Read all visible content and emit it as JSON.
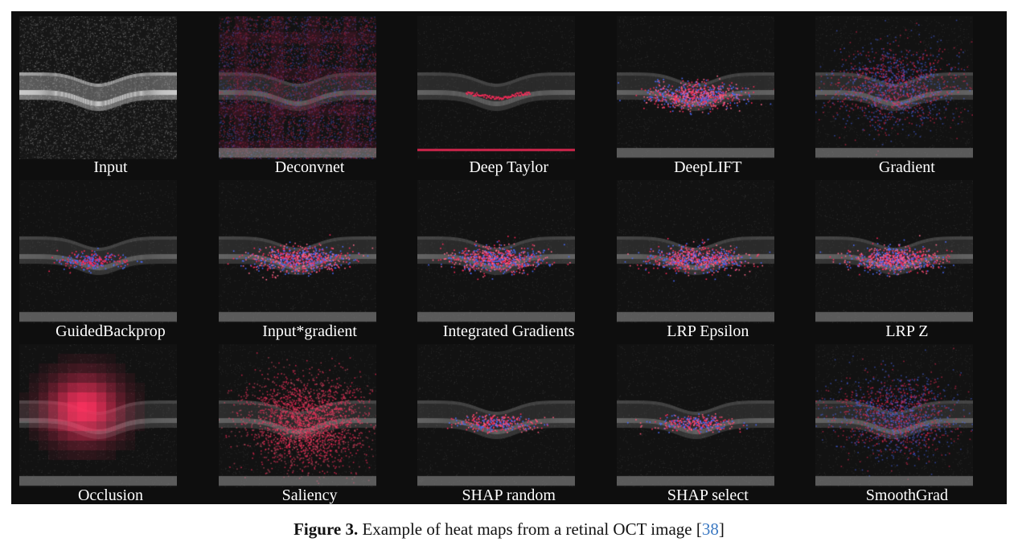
{
  "panels": [
    {
      "label": "Input",
      "kind": "input"
    },
    {
      "label": "Deconvnet",
      "kind": "deconv"
    },
    {
      "label": "Deep Taylor",
      "kind": "taylor"
    },
    {
      "label": "DeepLIFT",
      "kind": "scatter"
    },
    {
      "label": "Gradient",
      "kind": "gradient"
    },
    {
      "label": "GuidedBackprop",
      "kind": "guided"
    },
    {
      "label": "Input*gradient",
      "kind": "scatter"
    },
    {
      "label": "Integrated Gradients",
      "kind": "scatter"
    },
    {
      "label": "LRP Epsilon",
      "kind": "scatter"
    },
    {
      "label": "LRP Z",
      "kind": "scatter"
    },
    {
      "label": "Occlusion",
      "kind": "occlusion"
    },
    {
      "label": "Saliency",
      "kind": "saliency"
    },
    {
      "label": "SHAP random",
      "kind": "shap"
    },
    {
      "label": "SHAP select",
      "kind": "shap"
    },
    {
      "label": "SmoothGrad",
      "kind": "gradient"
    }
  ],
  "caption": {
    "prefix": "Figure 3.",
    "text": " Example of heat maps from a retinal OCT image ",
    "ref_open": "[",
    "ref": "38",
    "ref_close": "]"
  },
  "colors": {
    "background": "#0e0e0e",
    "positive": "#ff2a5a",
    "negative": "#4a6cff",
    "ref_link": "#3a78c2"
  }
}
